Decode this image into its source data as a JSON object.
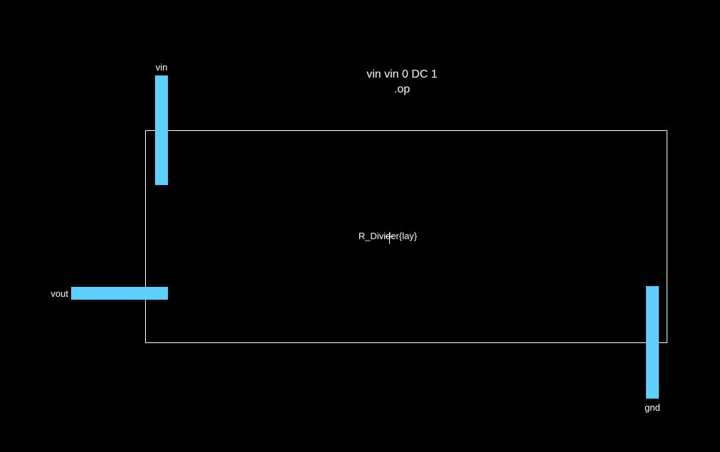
{
  "spice": {
    "line1": "vin vin 0 DC 1",
    "line2": ".op"
  },
  "cell": {
    "name": "R_Divider{lay}"
  },
  "pins": {
    "vin": "vin",
    "vout": "vout",
    "gnd": "gnd"
  },
  "colors": {
    "background": "#000000",
    "pin": "#5fcfff",
    "outline": "#ffffff",
    "text": "#ffffff"
  }
}
